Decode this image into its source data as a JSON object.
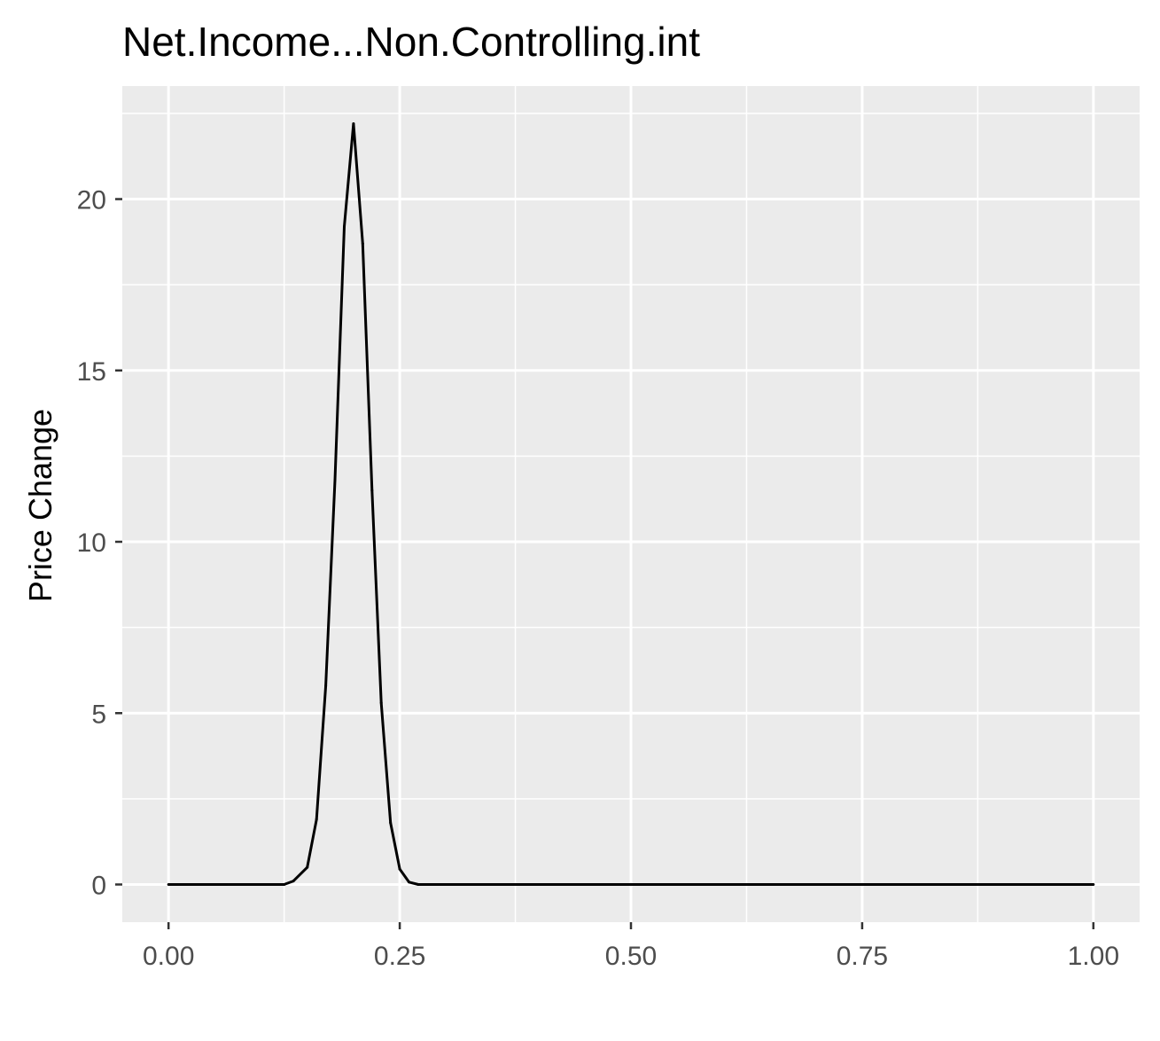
{
  "chart_data": {
    "type": "line",
    "title": "Net.Income...Non.Controlling.int",
    "xlabel": "",
    "ylabel": "Price Change",
    "xlim": [
      -0.05,
      1.05
    ],
    "ylim": [
      -1.1,
      23.3
    ],
    "x_ticks": [
      0,
      0.25,
      0.5,
      0.75,
      1
    ],
    "x_tick_labels": [
      "0.00",
      "0.25",
      "0.50",
      "0.75",
      "1.00"
    ],
    "y_ticks": [
      0,
      5,
      10,
      15,
      20
    ],
    "y_tick_labels": [
      "0",
      "5",
      "10",
      "15",
      "20"
    ],
    "grid": true,
    "legend": "none",
    "colors": {
      "panel": "#ebebeb",
      "grid": "#ffffff",
      "line": "#000000",
      "tick": "#333333"
    },
    "series": [
      {
        "x": [
          0,
          0.125,
          0.135,
          0.15,
          0.16,
          0.17,
          0.18,
          0.19,
          0.2,
          0.21,
          0.22,
          0.23,
          0.24,
          0.25,
          0.26,
          0.27,
          0.3,
          0.5,
          0.75,
          1.0
        ],
        "values": [
          0,
          0,
          0.1,
          0.5,
          1.9,
          5.8,
          11.8,
          19.2,
          22.2,
          18.7,
          11.5,
          5.3,
          1.8,
          0.45,
          0.07,
          0,
          0,
          0,
          0,
          0
        ]
      }
    ]
  }
}
